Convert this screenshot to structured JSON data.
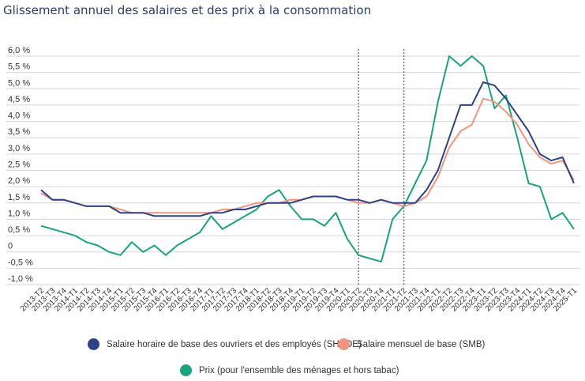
{
  "chart_data": {
    "type": "line",
    "title": "Glissement annuel des salaires et des prix à la consommation",
    "xlabel": "",
    "ylabel": "",
    "ylim": [
      -1.0,
      6.0
    ],
    "yticks": [
      6.0,
      5.5,
      5.0,
      4.5,
      4.0,
      3.5,
      3.0,
      2.5,
      2.0,
      1.5,
      1.0,
      0.5,
      0,
      -0.5,
      -1.0
    ],
    "ytick_labels": [
      "6,0 %",
      "5,5 %",
      "5,0 %",
      "4,5 %",
      "4,0 %",
      "3,5 %",
      "3,0 %",
      "2,5 %",
      "2,0 %",
      "1,5 %",
      "1,0 %",
      "0,5 %",
      "0",
      "-0,5 %",
      "-1,0 %"
    ],
    "grid": true,
    "legend_position": "bottom",
    "vertical_markers": [
      "2020-T2",
      "2021-T2"
    ],
    "categories": [
      "2013-T2",
      "2013-T3",
      "2013-T4",
      "2014-T1",
      "2014-T2",
      "2014-T3",
      "2014-T4",
      "2015-T1",
      "2015-T2",
      "2015-T3",
      "2015-T4",
      "2016-T1",
      "2016-T2",
      "2016-T3",
      "2016-T4",
      "2017-T1",
      "2017-T2",
      "2017-T3",
      "2017-T4",
      "2018-T1",
      "2018-T2",
      "2018-T3",
      "2018-T4",
      "2019-T1",
      "2019-T2",
      "2019-T3",
      "2019-T4",
      "2020-T1",
      "2020-T2",
      "2020-T3",
      "2020-T4",
      "2021-T1",
      "2021-T2",
      "2021-T3",
      "2021-T4",
      "2022-T1",
      "2022-T2",
      "2022-T3",
      "2022-T4",
      "2023-T1",
      "2023-T2",
      "2023-T3",
      "2023-T4",
      "2024-T1",
      "2024-T2",
      "2024-T3",
      "2024-T4",
      "2025-T1"
    ],
    "series": [
      {
        "name": "Salaire horaire de base des ouvriers et des employés (SHBOE)",
        "color": "#2e4286",
        "values": [
          1.9,
          1.6,
          1.6,
          1.5,
          1.4,
          1.4,
          1.4,
          1.2,
          1.2,
          1.2,
          1.1,
          1.1,
          1.1,
          1.1,
          1.1,
          1.2,
          1.2,
          1.3,
          1.3,
          1.4,
          1.5,
          1.5,
          1.5,
          1.6,
          1.7,
          1.7,
          1.7,
          1.6,
          1.6,
          1.5,
          1.6,
          1.5,
          1.5,
          1.5,
          1.9,
          2.5,
          3.5,
          4.5,
          4.5,
          5.2,
          5.1,
          4.7,
          4.2,
          3.7,
          3.0,
          2.8,
          2.9,
          2.1
        ]
      },
      {
        "name": "Salaire mensuel de base (SMB)",
        "color": "#f29480",
        "values": [
          1.8,
          1.6,
          1.6,
          1.5,
          1.4,
          1.4,
          1.4,
          1.3,
          1.2,
          1.2,
          1.2,
          1.2,
          1.2,
          1.2,
          1.2,
          1.2,
          1.3,
          1.3,
          1.4,
          1.5,
          1.5,
          1.5,
          1.6,
          1.6,
          1.7,
          1.7,
          1.7,
          1.6,
          1.5,
          1.5,
          1.6,
          1.5,
          1.4,
          1.5,
          1.7,
          2.3,
          3.2,
          3.7,
          3.9,
          4.7,
          4.6,
          4.3,
          3.9,
          3.3,
          2.9,
          2.7,
          2.8,
          2.2
        ]
      },
      {
        "name": "Prix (pour l'ensemble des ménages et hors tabac)",
        "color": "#1aa37f",
        "values": [
          0.8,
          0.7,
          0.6,
          0.5,
          0.3,
          0.2,
          0.0,
          -0.1,
          0.3,
          0.0,
          0.2,
          -0.1,
          0.2,
          0.4,
          0.6,
          1.1,
          0.7,
          0.9,
          1.1,
          1.3,
          1.7,
          1.9,
          1.4,
          1.0,
          1.0,
          0.8,
          1.2,
          0.4,
          -0.1,
          -0.2,
          -0.3,
          1.0,
          1.4,
          2.1,
          2.8,
          4.6,
          6.0,
          5.7,
          6.0,
          5.7,
          4.4,
          4.8,
          3.5,
          2.1,
          2.0,
          1.0,
          1.2,
          0.7
        ]
      }
    ]
  }
}
